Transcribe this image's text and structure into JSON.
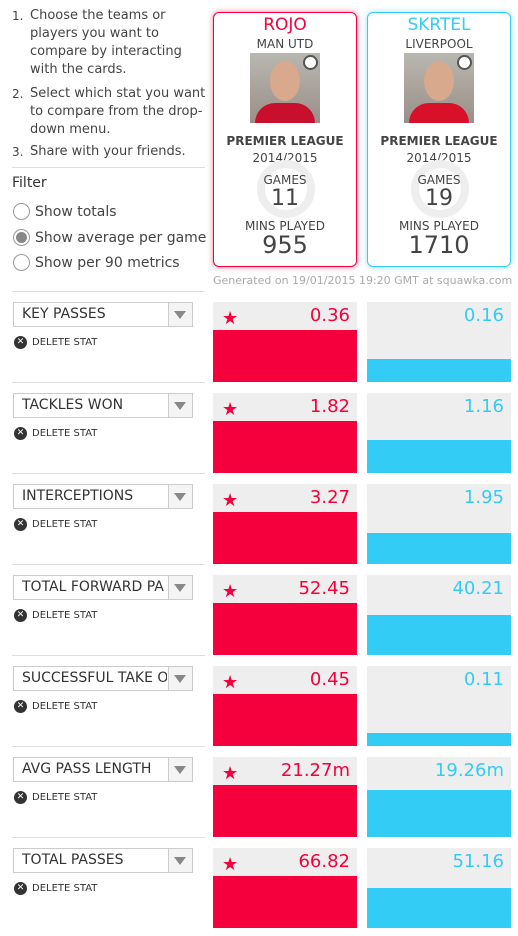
{
  "instructions": [
    {
      "number": "1.",
      "text": "Choose the teams or players you want to compare by interacting with the cards."
    },
    {
      "number": "2.",
      "text": "Select which stat you want to compare from the drop-down menu."
    },
    {
      "number": "3.",
      "text": "Share with your friends."
    }
  ],
  "filter": {
    "title": "Filter",
    "options": [
      {
        "label": "Show totals",
        "checked": false
      },
      {
        "label": "Show average per game",
        "checked": true
      },
      {
        "label": "Show per 90 metrics",
        "checked": false
      }
    ]
  },
  "players": [
    {
      "name": "ROJO",
      "team": "MAN UTD",
      "league": "PREMIER LEAGUE",
      "season": "2014/2015",
      "games_label": "GAMES",
      "games": 11,
      "mins_label": "MINS PLAYED",
      "mins": 955,
      "color": "#f5003c"
    },
    {
      "name": "SKRTEL",
      "team": "LIVERPOOL",
      "league": "PREMIER LEAGUE",
      "season": "2014/2015",
      "games_label": "GAMES",
      "games": 19,
      "mins_label": "MINS PLAYED",
      "mins": 1710,
      "color": "#33ccf4"
    }
  ],
  "generated": "Generated on 19/01/2015 19:20 GMT at squawka.com",
  "stats": [
    {
      "name": "KEY PASSES",
      "delete": "DELETE STAT",
      "values": [
        0.36,
        0.16
      ]
    },
    {
      "name": "TACKLES WON",
      "delete": "DELETE STAT",
      "values": [
        1.82,
        1.16
      ]
    },
    {
      "name": "INTERCEPTIONS",
      "delete": "DELETE STAT",
      "values": [
        3.27,
        1.95
      ]
    },
    {
      "name": "TOTAL FORWARD PA",
      "delete": "DELETE STAT",
      "values": [
        52.45,
        40.21
      ]
    },
    {
      "name": "SUCCESSFUL TAKE O",
      "delete": "DELETE STAT",
      "values": [
        0.45,
        0.11
      ]
    },
    {
      "name": "AVG PASS LENGTH",
      "delete": "DELETE STAT",
      "values": [
        21.27,
        19.26
      ],
      "value_labels": [
        "21.27m",
        "19.26m"
      ]
    },
    {
      "name": "TOTAL PASSES",
      "delete": "DELETE STAT",
      "values": [
        66.82,
        51.16
      ]
    }
  ]
}
